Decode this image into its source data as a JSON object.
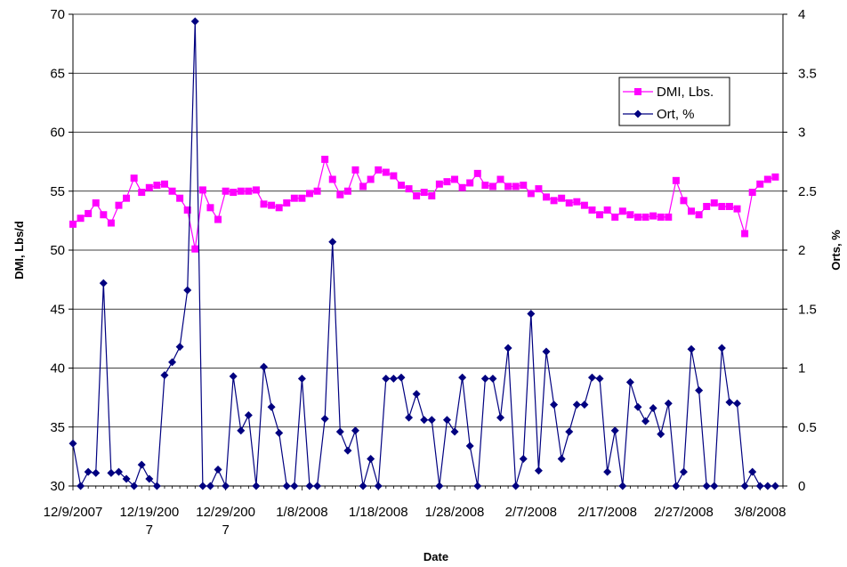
{
  "chart_data": {
    "type": "line",
    "xlabel": "Date",
    "ylabel_left": "DMI, Lbs/d",
    "ylabel_right": "Orts, %",
    "x_tick_labels": [
      "12/9/2007",
      "12/19/2007",
      "12/29/2007",
      "1/8/2008",
      "1/18/2008",
      "1/28/2008",
      "2/7/2008",
      "2/17/2008",
      "2/27/2008",
      "3/8/2008"
    ],
    "y_left_range": [
      30,
      70
    ],
    "y_left_ticks": [
      30,
      35,
      40,
      45,
      50,
      55,
      60,
      65,
      70
    ],
    "y_right_range": [
      0,
      4
    ],
    "y_right_ticks": [
      0,
      0.5,
      1,
      1.5,
      2,
      2.5,
      3,
      3.5,
      4
    ],
    "x_start_date": "12/9/2007",
    "grid": true,
    "legend": "top-right",
    "series": [
      {
        "name": "DMI, Lbs.",
        "axis": "left",
        "color": "#ff00ff",
        "marker": "square",
        "values": [
          52.2,
          52.7,
          53.1,
          54.0,
          53.0,
          52.3,
          53.8,
          54.4,
          56.1,
          54.9,
          55.3,
          55.5,
          55.6,
          55.0,
          54.4,
          53.4,
          50.1,
          55.1,
          53.6,
          52.6,
          55.0,
          54.9,
          55.0,
          55.0,
          55.1,
          53.9,
          53.8,
          53.6,
          54.0,
          54.4,
          54.4,
          54.8,
          55.0,
          57.7,
          56.0,
          54.7,
          55.0,
          56.8,
          55.4,
          56.0,
          56.8,
          56.6,
          56.3,
          55.5,
          55.2,
          54.6,
          54.9,
          54.6,
          55.6,
          55.8,
          56.0,
          55.3,
          55.7,
          56.5,
          55.5,
          55.4,
          56.0,
          55.4,
          55.4,
          55.5,
          54.8,
          55.2,
          54.5,
          54.2,
          54.4,
          54.0,
          54.1,
          53.8,
          53.4,
          53.0,
          53.4,
          52.8,
          53.3,
          53.0,
          52.8,
          52.8,
          52.9,
          52.8,
          52.8,
          55.9,
          54.2,
          53.3,
          53.0,
          53.7,
          54.0,
          53.7,
          53.7,
          53.5,
          51.4,
          54.9,
          55.6,
          56.0,
          56.2
        ]
      },
      {
        "name": "Ort, %",
        "axis": "right",
        "color": "#000080",
        "marker": "diamond",
        "values": [
          0.36,
          0.0,
          0.12,
          0.11,
          1.72,
          0.11,
          0.12,
          0.06,
          0.0,
          0.18,
          0.06,
          0.0,
          0.94,
          1.05,
          1.18,
          1.66,
          3.94,
          0.0,
          0.0,
          0.14,
          0.0,
          0.93,
          0.47,
          0.6,
          0.0,
          1.01,
          0.67,
          0.45,
          0.0,
          0.0,
          0.91,
          0.0,
          0.0,
          0.57,
          2.07,
          0.46,
          0.3,
          0.47,
          0.0,
          0.23,
          0.0,
          0.91,
          0.91,
          0.92,
          0.58,
          0.78,
          0.56,
          0.56,
          0.0,
          0.56,
          0.46,
          0.92,
          0.34,
          0.0,
          0.91,
          0.91,
          0.58,
          1.17,
          0.0,
          0.23,
          1.46,
          0.13,
          1.14,
          0.69,
          0.23,
          0.46,
          0.69,
          0.69,
          0.92,
          0.91,
          0.12,
          0.47,
          0.0,
          0.88,
          0.67,
          0.55,
          0.66,
          0.44,
          0.7,
          0.0,
          0.12,
          1.16,
          0.81,
          0.0,
          0.0,
          1.17,
          0.71,
          0.7,
          0.0,
          0.12,
          0.0,
          0.0,
          0.0
        ]
      }
    ]
  }
}
